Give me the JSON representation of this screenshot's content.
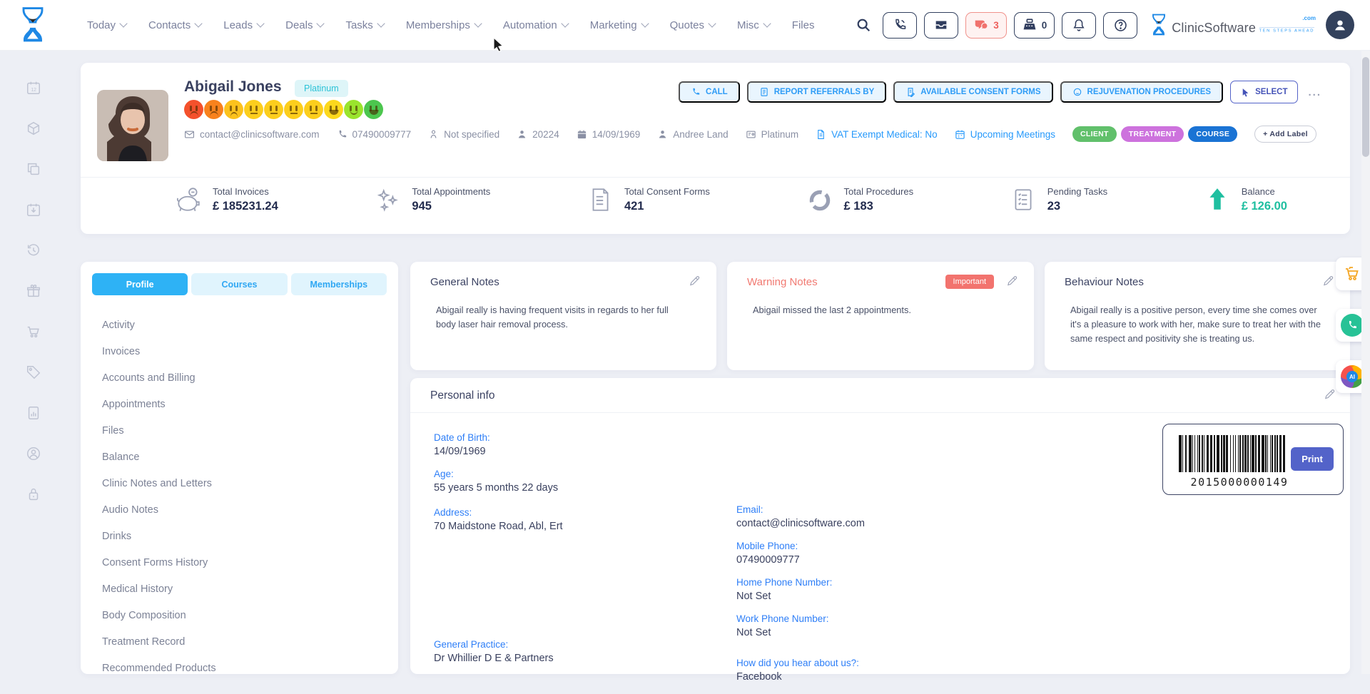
{
  "topnav": {
    "items": [
      {
        "label": "Today",
        "chevron": true
      },
      {
        "label": "Contacts",
        "chevron": true
      },
      {
        "label": "Leads",
        "chevron": true
      },
      {
        "label": "Deals",
        "chevron": true
      },
      {
        "label": "Tasks",
        "chevron": true
      },
      {
        "label": "Memberships",
        "chevron": true
      },
      {
        "label": "Automation",
        "chevron": true
      },
      {
        "label": "Marketing",
        "chevron": true
      },
      {
        "label": "Quotes",
        "chevron": true
      },
      {
        "label": "Misc",
        "chevron": true
      },
      {
        "label": "Files",
        "chevron": false
      }
    ]
  },
  "topbar": {
    "chat_count": "3",
    "register_count": "0",
    "brand": {
      "name": "ClinicSoftware",
      "com": ".com",
      "tagline": "TEN STEPS AHEAD"
    }
  },
  "profile": {
    "name": "Abigail Jones",
    "tier_badge": "Platinum",
    "mood_scale": [
      {
        "color": "#f4512c",
        "mouth": "frown"
      },
      {
        "color": "#f8821d",
        "mouth": "frown"
      },
      {
        "color": "#fcc21d",
        "mouth": "sad"
      },
      {
        "color": "#fcce1d",
        "mouth": "flat"
      },
      {
        "color": "#fcce1d",
        "mouth": "flat"
      },
      {
        "color": "#fcce1d",
        "mouth": "flat"
      },
      {
        "color": "#fcce1d",
        "mouth": "flat"
      },
      {
        "color": "#fcd81d",
        "mouth": "grin"
      },
      {
        "color": "#9ae42d",
        "mouth": "smile"
      },
      {
        "color": "#4cc64e",
        "mouth": "grin"
      }
    ],
    "contact": {
      "email": "contact@clinicsoftware.com",
      "phone": "07490009777",
      "gender": "Not specified",
      "client_id": "20224",
      "dob": "14/09/1969",
      "assigned_to": "Andree Land",
      "tier": "Platinum",
      "vat_link": "VAT Exempt Medical: No",
      "meetings_link": "Upcoming Meetings"
    },
    "labels": [
      {
        "text": "CLIENT",
        "color": "#61c06b"
      },
      {
        "text": "TREATMENT",
        "color": "#cd72dd"
      },
      {
        "text": "COURSE",
        "color": "#1a73d4"
      }
    ],
    "add_label": "+ Add Label",
    "actions": {
      "call": "CALL",
      "referrals": "REPORT REFERRALS BY",
      "consent": "AVAILABLE CONSENT FORMS",
      "rejuvenation": "REJUVENATION PROCEDURES",
      "select": "SELECT",
      "more": "..."
    }
  },
  "stats": {
    "items": [
      {
        "label": "Total Invoices",
        "value": "£ 185231.24"
      },
      {
        "label": "Total Appointments",
        "value": "945"
      },
      {
        "label": "Total Consent Forms",
        "value": "421"
      },
      {
        "label": "Total Procedures",
        "value": "£ 183"
      },
      {
        "label": "Pending Tasks",
        "value": "23"
      },
      {
        "label": "Balance",
        "value": "£ 126.00",
        "accent": "#1fbfa0"
      }
    ]
  },
  "sidebar": {
    "tabs": [
      {
        "label": "Profile",
        "state": "active"
      },
      {
        "label": "Courses"
      },
      {
        "label": "Memberships"
      }
    ],
    "menu": [
      "Activity",
      "Invoices",
      "Accounts and Billing",
      "Appointments",
      "Files",
      "Balance",
      "Clinic Notes and Letters",
      "Audio Notes",
      "Drinks",
      "Consent Forms History",
      "Medical History",
      "Body Composition",
      "Treatment Record",
      "Recommended Products"
    ]
  },
  "notes": {
    "general": {
      "title": "General Notes",
      "text": "Abigail really is having frequent visits in regards to her full body laser hair removal process."
    },
    "warning": {
      "title": "Warning Notes",
      "badge": "Important",
      "text": "Abigail missed the last 2 appointments."
    },
    "behaviour": {
      "title": "Behaviour Notes",
      "text": "Abigail really is a positive person, every time she comes over it's a pleasure to work with her, make sure to treat her with the same respect and positivity she is treating us."
    }
  },
  "personal_info": {
    "title": "Personal info",
    "left": [
      {
        "label": "Date of Birth:",
        "value": "14/09/1969"
      },
      {
        "label": "Age:",
        "value": "55 years 5 months 22 days"
      },
      {
        "label": "Address:",
        "value": "70 Maidstone Road, Abl, Ert",
        "gap": "sm"
      },
      {
        "label": "General Practice:",
        "value": "Dr Whillier D E & Partners",
        "gap": "lg"
      }
    ],
    "right": [
      {
        "label": "Email:",
        "value": "contact@clinicsoftware.com"
      },
      {
        "label": "Mobile Phone:",
        "value": "07490009777"
      },
      {
        "label": "Home Phone Number:",
        "value": "Not Set"
      },
      {
        "label": "Work Phone Number:",
        "value": "Not Set"
      },
      {
        "label": "How did you hear about us?:",
        "value": "Facebook",
        "gap": "md"
      }
    ],
    "barcode": {
      "number": "2015000000149",
      "print_label": "Print"
    }
  }
}
